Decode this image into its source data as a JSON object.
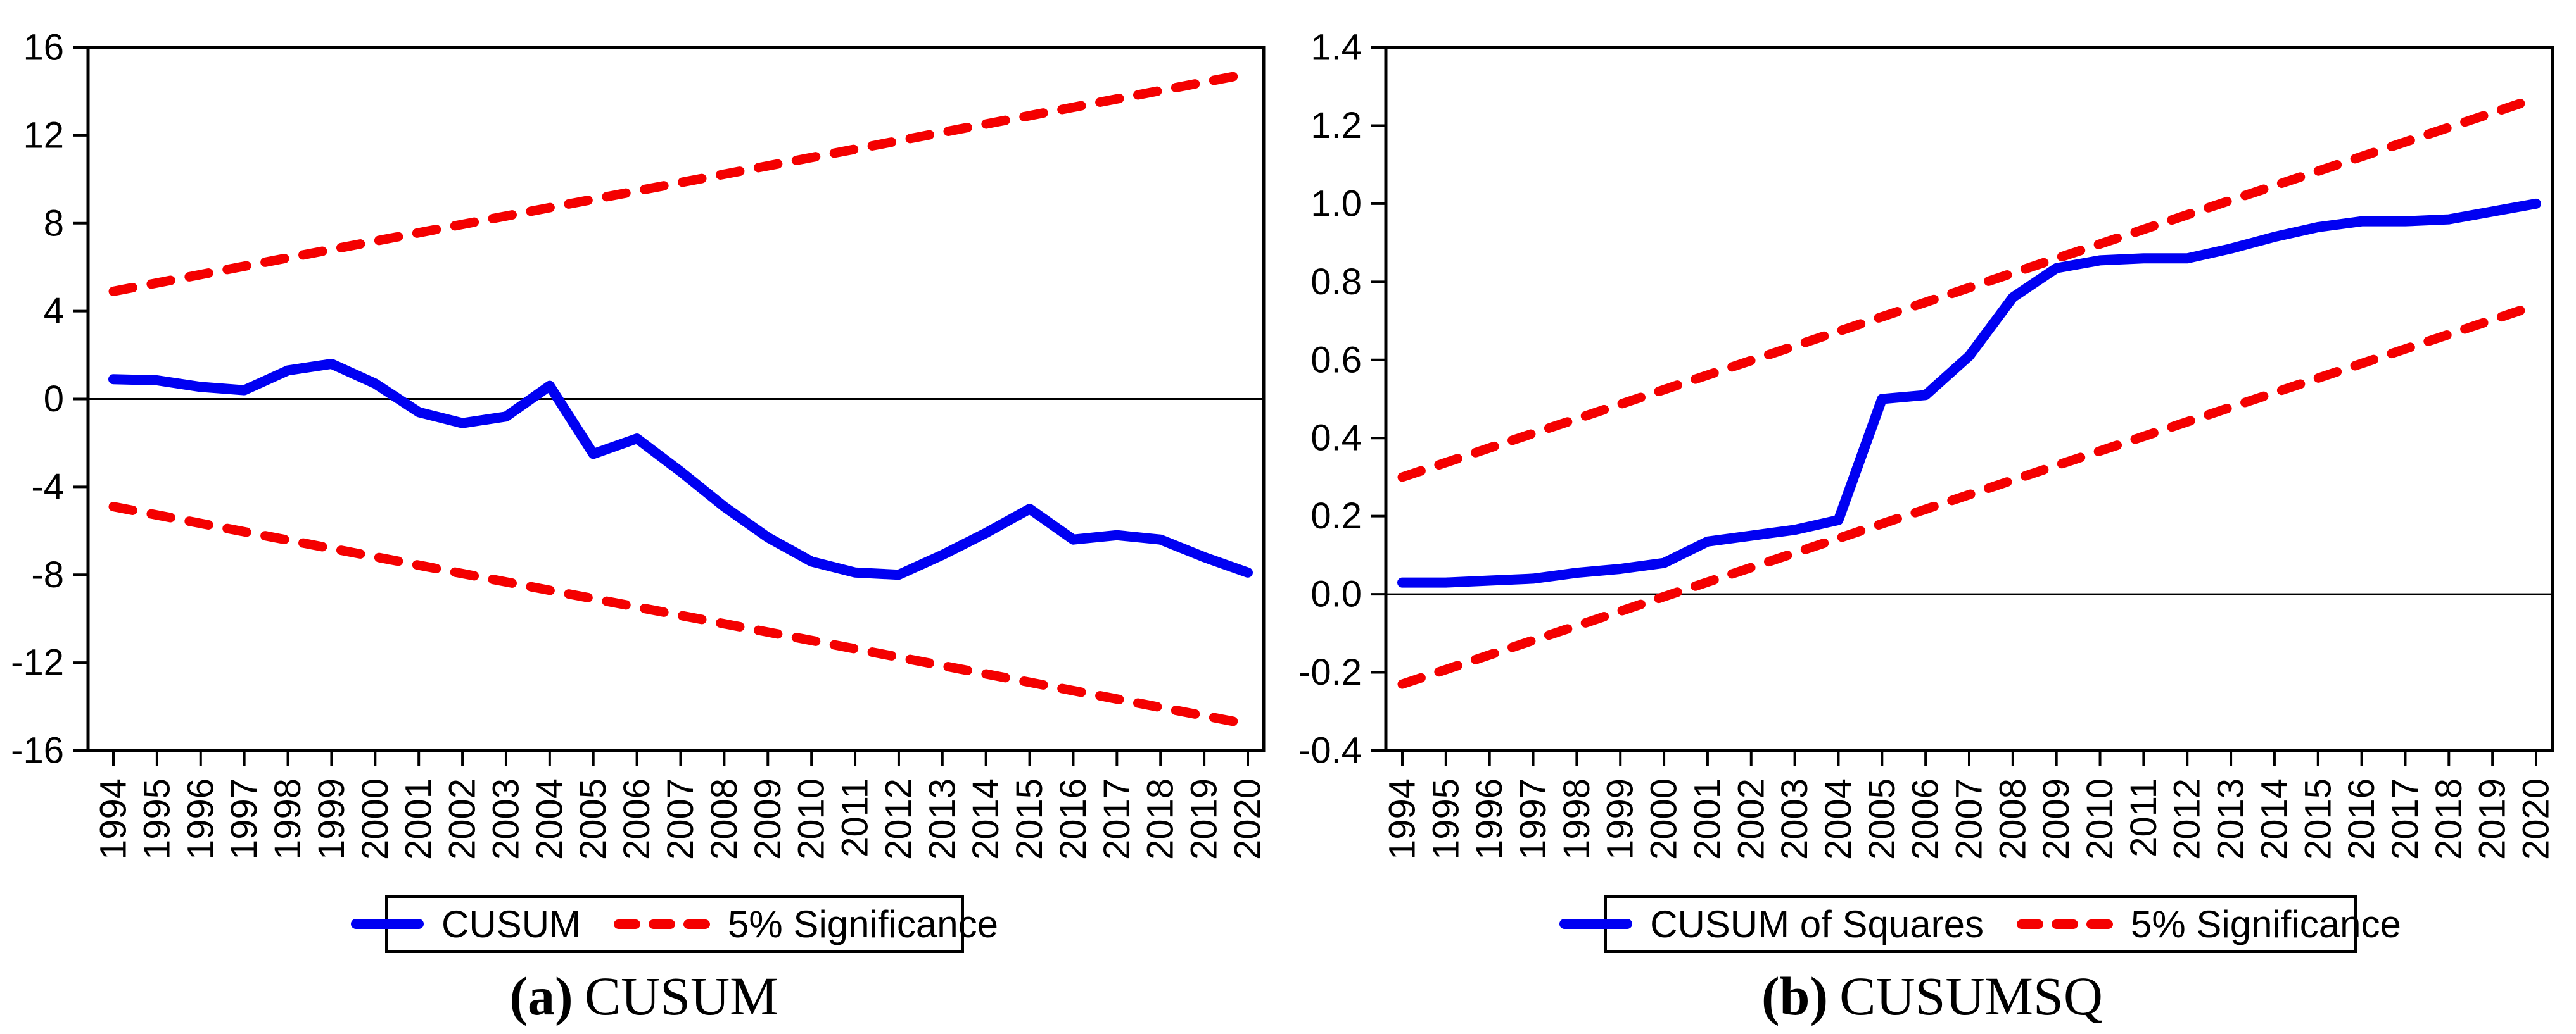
{
  "accent_colors": {
    "series_blue": "#0000f2",
    "bound_red": "#f40000",
    "axis_black": "#000000"
  },
  "panels": [
    {
      "caption_marker": "(a)",
      "caption_label": "CUSUM"
    },
    {
      "caption_marker": "(b)",
      "caption_label": "CUSUMSQ"
    }
  ],
  "chart_data": [
    {
      "type": "line",
      "title": "(a) CUSUM",
      "xlabel": "",
      "ylabel": "",
      "x": [
        1994,
        1995,
        1996,
        1997,
        1998,
        1999,
        2000,
        2001,
        2002,
        2003,
        2004,
        2005,
        2006,
        2007,
        2008,
        2009,
        2010,
        2011,
        2012,
        2013,
        2014,
        2015,
        2016,
        2017,
        2018,
        2019,
        2020
      ],
      "xtick_labels": [
        "1994",
        "1995",
        "1996",
        "1997",
        "1998",
        "1999",
        "2000",
        "2001",
        "2002",
        "2003",
        "2004",
        "2005",
        "2006",
        "2007",
        "2008",
        "2009",
        "2010",
        "2011",
        "2012",
        "2013",
        "2014",
        "2015",
        "2016",
        "2017",
        "2018",
        "2019",
        "2020"
      ],
      "ylim": [
        -16,
        16
      ],
      "yticks": [
        16,
        12,
        8,
        4,
        0,
        -4,
        -8,
        -12,
        -16
      ],
      "ytick_labels": [
        "16",
        "12",
        "8",
        "4",
        "0",
        "-4",
        "-8",
        "-12",
        "-16"
      ],
      "grid": false,
      "zero_line": true,
      "legend_position": "bottom",
      "series": [
        {
          "name": "CUSUM",
          "style": "solid",
          "color": "#0000f2",
          "values": [
            0.9,
            0.85,
            0.55,
            0.4,
            1.3,
            1.6,
            0.7,
            -0.6,
            -1.1,
            -0.8,
            0.6,
            -2.5,
            -1.8,
            -3.3,
            -4.9,
            -6.3,
            -7.4,
            -7.9,
            -8.0,
            -7.1,
            -6.1,
            -5.0,
            -6.4,
            -6.2,
            -6.4,
            -7.2,
            -7.9
          ]
        },
        {
          "name": "5% Significance (upper bound)",
          "style": "dashed",
          "color": "#f40000",
          "x": [
            1994,
            2020
          ],
          "values": [
            4.9,
            14.8
          ]
        },
        {
          "name": "5% Significance (lower bound)",
          "style": "dashed",
          "color": "#f40000",
          "x": [
            1994,
            2020
          ],
          "values": [
            -4.9,
            -14.8
          ]
        }
      ],
      "legend_entries": [
        {
          "label": "CUSUM",
          "style": "solid",
          "color": "#0000f2"
        },
        {
          "label": "5% Significance",
          "style": "dashed",
          "color": "#f40000"
        }
      ]
    },
    {
      "type": "line",
      "title": "(b) CUSUMSQ",
      "xlabel": "",
      "ylabel": "",
      "x": [
        1994,
        1995,
        1996,
        1997,
        1998,
        1999,
        2000,
        2001,
        2002,
        2003,
        2004,
        2005,
        2006,
        2007,
        2008,
        2009,
        2010,
        2011,
        2012,
        2013,
        2014,
        2015,
        2016,
        2017,
        2018,
        2019,
        2020
      ],
      "xtick_labels": [
        "1994",
        "1995",
        "1996",
        "1997",
        "1998",
        "1999",
        "2000",
        "2001",
        "2002",
        "2003",
        "2004",
        "2005",
        "2006",
        "2007",
        "2008",
        "2009",
        "2010",
        "2011",
        "2012",
        "2013",
        "2014",
        "2015",
        "2016",
        "2017",
        "2018",
        "2019",
        "2020"
      ],
      "ylim": [
        -0.4,
        1.4
      ],
      "yticks": [
        1.4,
        1.2,
        1.0,
        0.8,
        0.6,
        0.4,
        0.2,
        0.0,
        -0.2,
        -0.4
      ],
      "ytick_labels": [
        "1.4",
        "1.2",
        "1.0",
        "0.8",
        "0.6",
        "0.4",
        "0.2",
        "0.0",
        "-0.2",
        "-0.4"
      ],
      "grid": false,
      "zero_line": true,
      "legend_position": "bottom",
      "series": [
        {
          "name": "CUSUM of Squares",
          "style": "solid",
          "color": "#0000f2",
          "values": [
            0.03,
            0.03,
            0.035,
            0.04,
            0.055,
            0.065,
            0.08,
            0.135,
            0.15,
            0.165,
            0.19,
            0.5,
            0.51,
            0.61,
            0.76,
            0.835,
            0.855,
            0.86,
            0.86,
            0.885,
            0.915,
            0.94,
            0.955,
            0.955,
            0.96,
            0.98,
            1.0
          ]
        },
        {
          "name": "5% Significance (upper bound)",
          "style": "dashed",
          "color": "#f40000",
          "x": [
            1994,
            2020
          ],
          "values": [
            0.3,
            1.27
          ]
        },
        {
          "name": "5% Significance (lower bound)",
          "style": "dashed",
          "color": "#f40000",
          "x": [
            1994,
            2020
          ],
          "values": [
            -0.23,
            0.74
          ]
        }
      ],
      "legend_entries": [
        {
          "label": "CUSUM of Squares",
          "style": "solid",
          "color": "#0000f2"
        },
        {
          "label": "5% Significance",
          "style": "dashed",
          "color": "#f40000"
        }
      ]
    }
  ]
}
